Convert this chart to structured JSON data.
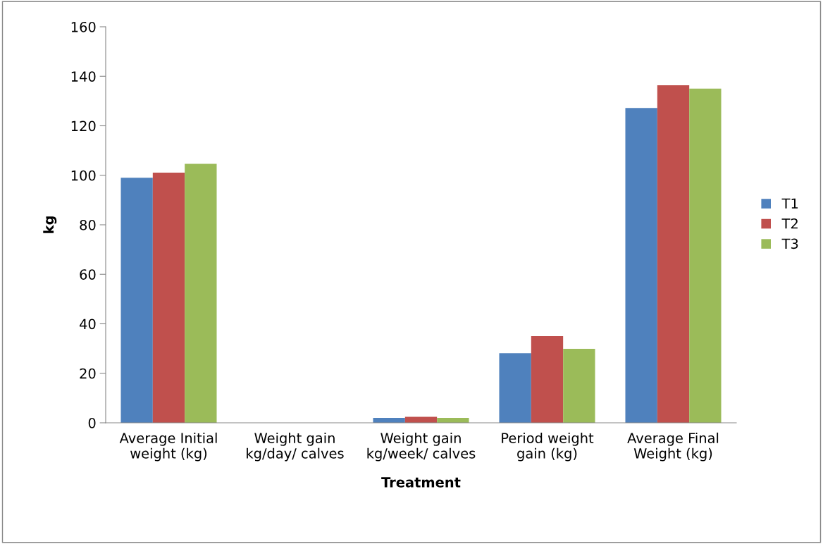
{
  "chart_data": {
    "type": "bar",
    "xlabel": "Treatment",
    "ylabel": "kg",
    "categories": [
      "Average Initial\nweight (kg)",
      "Weight gain\nkg/day/ calves",
      "Weight gain\nkg/week/ calves",
      "Period weight\ngain (kg)",
      "Average Final\nWeight (kg)"
    ],
    "series": [
      {
        "name": "T1",
        "color": "#4f81bd",
        "values": [
          99,
          null,
          2.0,
          28.1,
          127.2
        ]
      },
      {
        "name": "T2",
        "color": "#c0504d",
        "values": [
          101.1,
          null,
          2.4,
          35.0,
          136.4
        ]
      },
      {
        "name": "T3",
        "color": "#9bbb59",
        "values": [
          104.6,
          null,
          2.0,
          29.9,
          135.0
        ]
      }
    ],
    "ylim": [
      0,
      160
    ],
    "yticks": [
      0,
      20,
      40,
      60,
      80,
      100,
      120,
      140,
      160
    ],
    "grid": false,
    "legend": "right"
  }
}
